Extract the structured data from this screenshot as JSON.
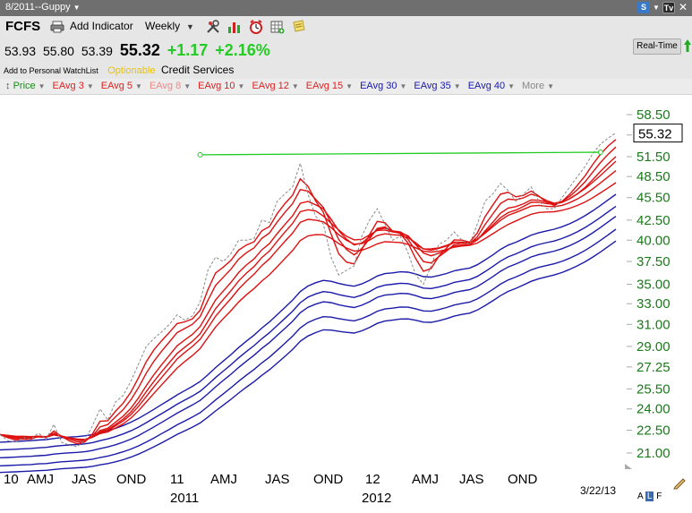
{
  "window": {
    "title": "8/2011--Guppy"
  },
  "header": {
    "ticker": "FCFS",
    "add_indicator_label": "Add Indicator",
    "period": "Weekly",
    "quote": {
      "v1": "53.93",
      "v2": "55.80",
      "v3": "53.39",
      "last": "55.32",
      "change": "+1.17",
      "change_pct": "+2.16%"
    },
    "watchlist_label": "Add to Personal WatchList",
    "optionable_label": "Optionable",
    "sector": "Credit Services",
    "realtime_label": "Real-Time"
  },
  "legend": [
    {
      "label": "Price",
      "color": "#1a8a1a"
    },
    {
      "label": "EAvg 3",
      "color": "#dd2222"
    },
    {
      "label": "EAvg 5",
      "color": "#dd2222"
    },
    {
      "label": "EAvg 8",
      "color": "#ee8888"
    },
    {
      "label": "EAvg 10",
      "color": "#dd2222"
    },
    {
      "label": "EAvg 12",
      "color": "#dd2222"
    },
    {
      "label": "EAvg 15",
      "color": "#dd2222"
    },
    {
      "label": "EAvg 30",
      "color": "#1a1aa8"
    },
    {
      "label": "EAvg 35",
      "color": "#1a1aa8"
    },
    {
      "label": "EAvg 40",
      "color": "#1a1aa8"
    },
    {
      "label": "More",
      "color": "#888888"
    }
  ],
  "footer": {
    "date": "3/22/13",
    "alf_a": "A",
    "alf_l": "L",
    "alf_f": "F"
  },
  "chart_data": {
    "type": "line",
    "y_scale": "log",
    "ylim": [
      19.5,
      61
    ],
    "y_ticks": [
      "58.50",
      "55.00",
      "51.50",
      "48.50",
      "45.50",
      "42.50",
      "40.00",
      "37.50",
      "35.00",
      "33.00",
      "31.00",
      "29.00",
      "27.25",
      "25.50",
      "24.00",
      "22.50",
      "21.00"
    ],
    "last_price_label": "55.32",
    "x_period_labels": [
      "10",
      "AMJ",
      "JAS",
      "OND",
      "11",
      "AMJ",
      "JAS",
      "OND",
      "12",
      "AMJ",
      "JAS",
      "OND"
    ],
    "x_year_labels": [
      "2011",
      "2012"
    ],
    "colors": {
      "price": "#8a8a8a",
      "short": "#dd1111",
      "long": "#1a1aa8",
      "trendline": "#22cc22"
    },
    "x": [
      0,
      2,
      4,
      6,
      8,
      10,
      12,
      14,
      16,
      18,
      20,
      22,
      24,
      26,
      28,
      30,
      32,
      34,
      36,
      38,
      40,
      42,
      44,
      46,
      48,
      50,
      52,
      54,
      56,
      58,
      60,
      62,
      64,
      66,
      68,
      70,
      72,
      74,
      76,
      78,
      80,
      82,
      84,
      86,
      88,
      90,
      92,
      94,
      96,
      98,
      100,
      102,
      104,
      106,
      108,
      110,
      112,
      114,
      116,
      118,
      120,
      122,
      124,
      126,
      128,
      130,
      132,
      134,
      136,
      138,
      140,
      142,
      144,
      146,
      148,
      150,
      152,
      154,
      156,
      158,
      160
    ],
    "price": [
      22.2,
      21.8,
      21.7,
      22.0,
      21.9,
      22.3,
      21.9,
      22.9,
      21.7,
      21.5,
      21.4,
      21.8,
      22.8,
      24.0,
      23.2,
      24.5,
      25.0,
      26.1,
      27.5,
      29.0,
      29.7,
      30.3,
      31.0,
      31.9,
      31.4,
      31.8,
      33.2,
      36.5,
      38.0,
      37.5,
      38.4,
      40.0,
      40.0,
      40.2,
      42.5,
      42.2,
      45.0,
      46.0,
      47.0,
      50.5,
      46.0,
      43.0,
      42.0,
      38.0,
      36.0,
      36.5,
      37.0,
      40.5,
      42.5,
      44.0,
      42.0,
      40.0,
      40.5,
      38.5,
      36.0,
      35.0,
      37.0,
      39.5,
      40.0,
      41.0,
      40.0,
      39.5,
      42.0,
      45.0,
      46.0,
      47.5,
      46.5,
      45.0,
      46.0,
      47.0,
      45.0,
      44.0,
      44.0,
      45.5,
      47.0,
      48.5,
      50.0,
      52.0,
      53.5,
      54.5,
      55.32
    ],
    "ema_3": [
      22.2,
      22.0,
      21.85,
      21.9,
      21.9,
      22.1,
      22.0,
      22.45,
      22.08,
      21.79,
      21.6,
      21.7,
      22.25,
      23.12,
      23.16,
      23.83,
      24.42,
      25.26,
      26.38,
      27.69,
      28.7,
      29.5,
      30.25,
      31.08,
      31.24,
      31.52,
      32.36,
      34.43,
      36.21,
      36.86,
      37.63,
      38.81,
      39.41,
      39.8,
      41.15,
      41.68,
      43.34,
      44.67,
      45.83,
      48.17,
      47.08,
      45.04,
      43.52,
      40.76,
      38.38,
      37.44,
      37.22,
      38.86,
      40.68,
      42.34,
      42.17,
      41.09,
      40.79,
      39.65,
      37.82,
      36.41,
      36.71,
      38.1,
      39.05,
      40.03,
      40.01,
      39.76,
      40.88,
      42.94,
      44.47,
      45.98,
      46.24,
      45.62,
      45.81,
      46.41,
      45.7,
      44.85,
      44.43,
      44.96,
      45.98,
      47.24,
      48.62,
      50.31,
      51.9,
      53.2,
      54.26
    ],
    "ema_5": [
      22.2,
      22.07,
      21.94,
      21.96,
      21.94,
      22.06,
      22.01,
      22.3,
      22.1,
      21.9,
      21.73,
      21.76,
      22.1,
      22.73,
      22.89,
      23.43,
      23.95,
      24.67,
      25.61,
      26.74,
      27.73,
      28.59,
      29.39,
      30.23,
      30.62,
      31.01,
      31.74,
      33.33,
      34.88,
      35.75,
      36.64,
      37.76,
      38.51,
      39.07,
      40.21,
      40.88,
      42.25,
      43.5,
      44.67,
      46.61,
      46.41,
      45.27,
      44.18,
      42.12,
      40.08,
      38.89,
      38.26,
      39.0,
      40.17,
      41.45,
      41.63,
      41.09,
      40.89,
      40.09,
      38.73,
      37.49,
      37.33,
      38.05,
      38.7,
      39.47,
      39.65,
      39.6,
      40.4,
      41.93,
      43.29,
      44.69,
      45.29,
      45.19,
      45.46,
      45.97,
      45.65,
      45.1,
      44.73,
      44.99,
      45.66,
      46.61,
      47.74,
      49.16,
      50.61,
      51.9,
      53.04
    ],
    "ema_8": [
      22.2,
      22.11,
      22.02,
      22.02,
      21.99,
      22.06,
      22.02,
      22.22,
      22.1,
      21.97,
      21.84,
      21.83,
      22.04,
      22.48,
      22.64,
      23.05,
      23.48,
      24.05,
      24.82,
      25.75,
      26.63,
      27.44,
      28.23,
      29.05,
      29.57,
      30.07,
      30.8,
      32.06,
      33.38,
      34.29,
      35.2,
      36.27,
      37.1,
      37.79,
      38.84,
      39.59,
      40.79,
      41.94,
      43.06,
      44.72,
      44.98,
      44.53,
      43.97,
      42.64,
      41.16,
      40.13,
      39.43,
      39.67,
      40.41,
      41.32,
      41.47,
      41.14,
      41.0,
      40.45,
      39.46,
      38.47,
      38.15,
      38.45,
      38.8,
      39.29,
      39.45,
      39.46,
      40.02,
      41.13,
      42.21,
      43.39,
      44.08,
      44.28,
      44.66,
      45.18,
      45.14,
      44.89,
      44.69,
      44.87,
      45.34,
      46.04,
      46.92,
      48.05,
      49.26,
      50.43,
      51.52
    ],
    "ema_10": [
      22.2,
      22.13,
      22.05,
      22.04,
      22.01,
      22.06,
      22.03,
      22.19,
      22.09,
      21.98,
      21.88,
      21.86,
      22.04,
      22.4,
      22.54,
      22.89,
      23.27,
      23.78,
      24.46,
      25.29,
      26.09,
      26.86,
      27.61,
      28.39,
      28.93,
      29.45,
      30.13,
      31.29,
      32.51,
      33.42,
      34.33,
      35.36,
      36.2,
      36.93,
      37.95,
      38.71,
      39.86,
      40.98,
      42.07,
      43.6,
      43.86,
      43.71,
      43.03,
      42.11,
      41.25,
      40.48,
      40.04,
      40.1,
      40.64,
      41.2,
      41.25,
      41.02,
      40.88,
      40.53,
      39.51,
      38.95,
      38.97,
      39.07,
      39.37,
      39.77,
      39.76,
      39.73,
      40.12,
      40.94,
      41.86,
      42.81,
      43.48,
      43.81,
      44.3,
      44.86,
      44.88,
      44.68,
      44.6,
      44.86,
      45.35,
      46.02,
      46.76,
      47.67,
      48.65,
      49.72,
      50.81
    ],
    "ema_12": [
      22.2,
      22.14,
      22.07,
      22.06,
      22.04,
      22.08,
      22.05,
      22.21,
      22.1,
      21.98,
      21.89,
      21.87,
      22.03,
      22.36,
      22.49,
      22.8,
      23.14,
      23.59,
      24.19,
      24.92,
      25.67,
      26.4,
      27.14,
      27.91,
      28.47,
      29.0,
      29.64,
      30.66,
      31.77,
      32.66,
      33.52,
      34.49,
      35.33,
      36.08,
      37.03,
      37.79,
      38.82,
      39.85,
      40.86,
      42.22,
      42.6,
      42.5,
      42.28,
      41.57,
      40.67,
      39.98,
      39.52,
      39.59,
      40.01,
      40.55,
      40.78,
      40.66,
      40.6,
      40.31,
      39.68,
      38.96,
      38.81,
      39.01,
      39.3,
      39.7,
      39.75,
      39.71,
      40.09,
      40.84,
      41.64,
      42.46,
      43.13,
      43.5,
      43.91,
      44.35,
      44.44,
      44.32,
      44.27,
      44.44,
      44.82,
      45.31,
      45.95,
      46.73,
      47.57,
      48.47,
      49.37
    ],
    "ema_15": [
      22.2,
      22.15,
      22.1,
      22.09,
      22.07,
      22.1,
      22.07,
      22.18,
      22.09,
      21.99,
      21.91,
      21.88,
      22.02,
      22.27,
      22.39,
      22.65,
      22.94,
      23.34,
      23.87,
      24.51,
      25.16,
      25.82,
      26.48,
      27.16,
      27.7,
      28.21,
      28.81,
      29.78,
      30.75,
      31.55,
      32.31,
      33.17,
      33.9,
      34.55,
      35.34,
      36.02,
      36.9,
      37.83,
      38.76,
      39.96,
      40.52,
      40.67,
      40.66,
      40.23,
      39.59,
      39.06,
      38.7,
      38.79,
      39.13,
      39.55,
      39.81,
      39.77,
      39.71,
      39.5,
      39.08,
      38.68,
      38.59,
      38.67,
      38.88,
      39.16,
      39.3,
      39.38,
      39.65,
      40.19,
      40.78,
      41.38,
      41.95,
      42.39,
      42.85,
      43.27,
      43.5,
      43.56,
      43.6,
      43.77,
      44.06,
      44.43,
      44.9,
      45.49,
      46.16,
      46.87,
      47.61
    ],
    "ema_30": [
      20.7,
      20.72,
      20.74,
      20.77,
      20.79,
      20.83,
      20.86,
      20.93,
      20.98,
      21.01,
      21.04,
      21.08,
      21.16,
      21.28,
      21.39,
      21.53,
      21.7,
      21.9,
      22.14,
      22.43,
      22.73,
      23.04,
      23.36,
      23.69,
      23.99,
      24.29,
      24.63,
      25.12,
      25.66,
      26.16,
      26.66,
      27.21,
      27.73,
      28.23,
      28.82,
      29.34,
      29.98,
      30.62,
      31.29,
      32.11,
      32.65,
      32.96,
      33.19,
      33.11,
      32.9,
      32.74,
      32.62,
      32.85,
      33.2,
      33.64,
      33.87,
      33.95,
      34.05,
      34.02,
      33.82,
      33.56,
      33.51,
      33.67,
      33.87,
      34.14,
      34.3,
      34.43,
      34.77,
      35.27,
      35.81,
      36.4,
      36.88,
      37.21,
      37.6,
      38.02,
      38.3,
      38.5,
      38.69,
      38.98,
      39.34,
      39.79,
      40.3,
      40.91,
      41.57,
      42.28,
      43.0
    ],
    "ema_35": [
      20.2,
      20.22,
      20.24,
      20.26,
      20.28,
      20.32,
      20.34,
      20.4,
      20.45,
      20.48,
      20.51,
      20.55,
      20.61,
      20.72,
      20.81,
      20.93,
      21.08,
      21.25,
      21.46,
      21.71,
      21.98,
      22.27,
      22.56,
      22.87,
      23.14,
      23.42,
      23.73,
      24.18,
      24.66,
      25.12,
      25.59,
      26.1,
      26.58,
      27.04,
      27.58,
      28.07,
      28.66,
      29.27,
      29.91,
      30.67,
      31.18,
      31.49,
      31.73,
      31.69,
      31.54,
      31.42,
      31.33,
      31.54,
      31.86,
      32.26,
      32.48,
      32.56,
      32.67,
      32.66,
      32.5,
      32.29,
      32.26,
      32.42,
      32.62,
      32.87,
      33.03,
      33.16,
      33.48,
      33.95,
      34.46,
      35.01,
      35.46,
      35.78,
      36.15,
      36.56,
      36.84,
      37.04,
      37.24,
      37.52,
      37.87,
      38.29,
      38.78,
      39.35,
      39.98,
      40.65,
      41.35
    ],
    "ema_40": [
      19.8,
      19.82,
      19.84,
      19.86,
      19.88,
      19.91,
      19.93,
      19.98,
      20.02,
      20.05,
      20.08,
      20.11,
      20.17,
      20.26,
      20.34,
      20.45,
      20.58,
      20.74,
      20.93,
      21.16,
      21.4,
      21.66,
      21.93,
      22.21,
      22.46,
      22.71,
      23.0,
      23.41,
      23.85,
      24.27,
      24.71,
      25.18,
      25.63,
      26.06,
      26.56,
      27.02,
      27.57,
      28.13,
      28.73,
      29.45,
      29.93,
      30.24,
      30.49,
      30.47,
      30.35,
      30.26,
      30.2,
      30.4,
      30.71,
      31.09,
      31.31,
      31.4,
      31.51,
      31.52,
      31.39,
      31.21,
      31.19,
      31.34,
      31.54,
      31.78,
      31.95,
      32.07,
      32.37,
      32.81,
      33.29,
      33.81,
      34.25,
      34.57,
      34.93,
      35.32,
      35.6,
      35.8,
      36.0,
      36.27,
      36.61,
      37.01,
      37.47,
      38.01,
      38.6,
      39.24,
      39.9
    ],
    "ema_long_extra": [
      [
        21.2,
        21.22,
        21.24,
        21.27,
        21.29,
        21.33,
        21.36,
        21.43,
        21.48,
        21.52,
        21.55,
        21.59,
        21.67,
        21.8,
        21.92,
        22.07,
        22.25,
        22.46,
        22.72,
        23.02,
        23.34,
        23.66,
        23.99,
        24.34,
        24.65,
        24.96,
        25.32,
        25.83,
        26.39,
        26.91,
        27.43,
        28.01,
        28.55,
        29.07,
        29.68,
        30.23,
        30.89,
        31.56,
        32.26,
        33.1,
        33.66,
        33.99,
        34.23,
        34.14,
        33.92,
        33.76,
        33.63,
        33.87,
        34.23,
        34.68,
        34.92,
        35.0,
        35.11,
        35.07,
        34.87,
        34.6,
        34.55,
        34.71,
        34.92,
        35.2,
        35.36,
        35.5,
        35.85,
        36.37,
        36.93,
        37.54,
        38.03,
        38.37,
        38.77,
        39.2,
        39.49,
        39.7,
        39.9,
        40.2,
        40.57,
        41.03,
        41.56,
        42.18,
        42.86,
        43.58,
        44.32
      ],
      [
        21.7,
        21.72,
        21.74,
        21.77,
        21.8,
        21.84,
        21.87,
        21.94,
        22.0,
        22.04,
        22.07,
        22.12,
        22.2,
        22.34,
        22.47,
        22.63,
        22.82,
        23.05,
        23.32,
        23.64,
        23.97,
        24.32,
        24.67,
        25.04,
        25.37,
        25.7,
        26.08,
        26.61,
        27.2,
        27.74,
        28.29,
        28.9,
        29.46,
        30.01,
        30.65,
        31.23,
        31.92,
        32.62,
        33.35,
        34.23,
        34.81,
        35.16,
        35.41,
        35.32,
        35.09,
        34.92,
        34.79,
        35.04,
        35.42,
        35.89,
        36.15,
        36.23,
        36.35,
        36.31,
        36.1,
        35.82,
        35.77,
        35.94,
        36.16,
        36.45,
        36.62,
        36.76,
        37.13,
        37.67,
        38.25,
        38.89,
        39.4,
        39.75,
        40.17,
        40.62,
        40.92,
        41.14,
        41.35,
        41.66,
        42.04,
        42.52,
        43.08,
        43.73,
        44.44,
        45.19,
        45.96
      ]
    ],
    "trendline": {
      "x": [
        52,
        156
      ],
      "y": [
        51.8,
        52.2
      ]
    }
  }
}
